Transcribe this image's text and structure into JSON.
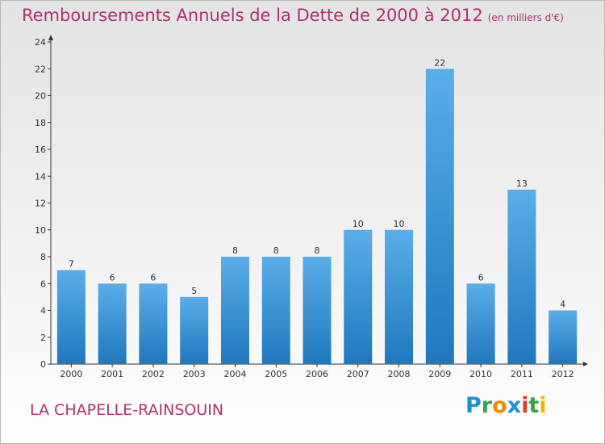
{
  "header": {
    "title": "Remboursements Annuels de la Dette de 2000 à 2012",
    "unit": "(en milliers d'€)"
  },
  "footer": {
    "commune": "LA CHAPELLE-RAINSOUIN"
  },
  "logo": {
    "letters": [
      "P",
      "r",
      "o",
      "x",
      "i",
      "t",
      "i"
    ],
    "colors": [
      "#1e8fd5",
      "#2ea84a",
      "#f08a00",
      "#1e8fd5",
      "#e33b2c",
      "#2ea84a",
      "#f0b400"
    ]
  },
  "colors": {
    "bar_top": "#5aaee8",
    "bar_bottom": "#1f78be",
    "title": "#b03070",
    "axis": "#333333"
  },
  "chart_data": {
    "type": "bar",
    "categories": [
      "2000",
      "2001",
      "2002",
      "2003",
      "2004",
      "2005",
      "2006",
      "2007",
      "2008",
      "2009",
      "2010",
      "2011",
      "2012"
    ],
    "values": [
      7,
      6,
      6,
      5,
      8,
      8,
      8,
      10,
      10,
      22,
      6,
      13,
      4
    ],
    "data_labels": [
      "7",
      "6",
      "6",
      "5",
      "8",
      "8",
      "8",
      "10",
      "10",
      "22",
      "6",
      "13",
      "4"
    ],
    "y_ticks": [
      "0",
      "2",
      "4",
      "6",
      "8",
      "10",
      "12",
      "14",
      "16",
      "18",
      "20",
      "22",
      "24"
    ],
    "ylim": [
      0,
      24
    ],
    "grid": false
  }
}
